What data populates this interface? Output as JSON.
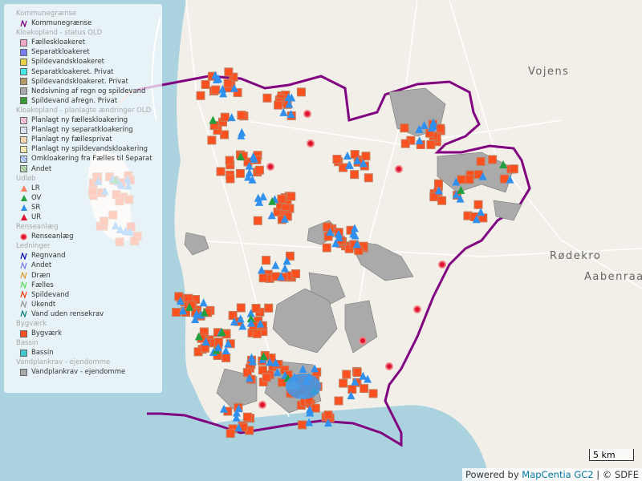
{
  "legend": {
    "groups": [
      {
        "title": "Kommunegrænse",
        "items": [
          "Kommunegrænse"
        ]
      },
      {
        "title": "Kloakopland - status OLD",
        "items": [
          "Fælleskloakeret",
          "Separatkloakeret",
          "Spildevandskloakeret",
          "Separatkloakeret. Privat",
          "Spildevandskloakeret. Privat",
          "Nedsivning af regn og spildevand",
          "Spildevand afregn. Privat"
        ]
      },
      {
        "title": "Kloakopland - planlagte ændringer OLD",
        "items": [
          "Planlagt ny fælleskloakering",
          "Planlagt ny separatkloakering",
          "Planlagt ny fællesprivat",
          "Planlagt ny spildevandskloakering",
          "Omkloakering fra Fælles til Separat",
          "Andet"
        ]
      },
      {
        "title": "Udløb",
        "items": [
          "LR",
          "OV",
          "SR",
          "UR"
        ]
      },
      {
        "title": "Renseanlæg",
        "items": [
          "Renseanlæg"
        ]
      },
      {
        "title": "Ledninger",
        "items": [
          "Regnvand",
          "Andet",
          "Dræn",
          "Fælles",
          "Spildevand",
          "Ukendt",
          "Vand uden rensekrav"
        ]
      },
      {
        "title": "Bygværk",
        "items": [
          "Bygværk"
        ]
      },
      {
        "title": "Bassin",
        "items": [
          "Bassin"
        ]
      },
      {
        "title": "Vandplankrav - ejendomme",
        "items": [
          "Vandplankrav - ejendomme"
        ]
      }
    ]
  },
  "places": [
    "Vojens",
    "Rødekro",
    "Aabenraa"
  ],
  "scale": "5 km",
  "attribution": {
    "prefix": "Powered by",
    "link": "MapCentia GC2",
    "suffix": "| © SDFE"
  }
}
